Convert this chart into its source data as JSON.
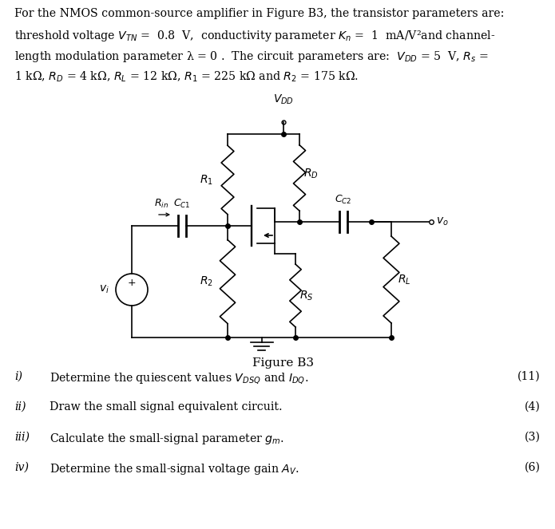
{
  "line1": "For the NMOS common-source amplifier in Figure B3, the transistor parameters are:",
  "line2": "threshold voltage $V_{TN}$ =  0.8  V,  conductivity parameter $K_n$ =  1  mA/V²and channel-",
  "line3": "length modulation parameter λ = 0 .  The circuit parameters are:  $V_{DD}$ = 5  V, $R_s$ =",
  "line4": "1 kΩ, $R_D$ = 4 kΩ, $R_L$ = 12 kΩ, $R_1$ = 225 kΩ and $R_2$ = 175 kΩ.",
  "figure_label": "Figure B3",
  "questions": [
    {
      "label": "i)",
      "text": "Determine the quiescent values $V_{DSQ}$ and $I_{DQ}$.",
      "marks": "(11)"
    },
    {
      "label": "ii)",
      "text": "Draw the small signal equivalent circuit.",
      "marks": "(4)"
    },
    {
      "label": "iii)",
      "text": "Calculate the small-signal parameter $g_m$.",
      "marks": "(3)"
    },
    {
      "label": "iv)",
      "text": "Determine the small-signal voltage gain $A_V$.",
      "marks": "(6)"
    }
  ],
  "bg_color": "#ffffff",
  "text_color": "#000000"
}
